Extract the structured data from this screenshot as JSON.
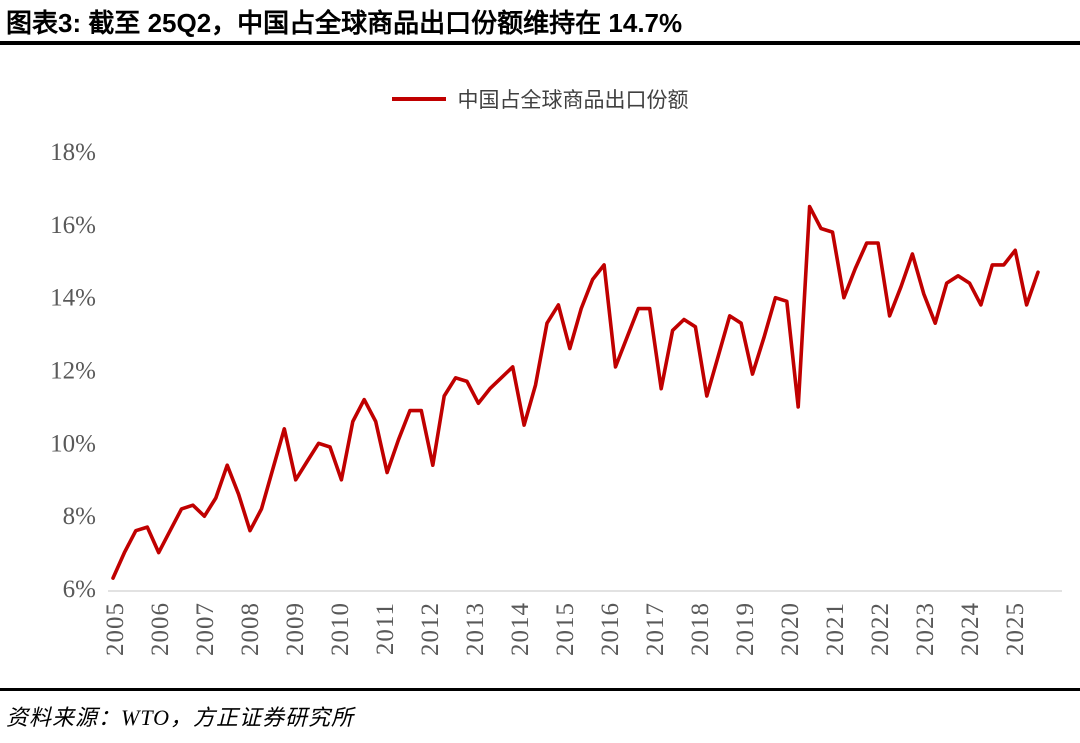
{
  "header": {
    "title": "图表3: 截至 25Q2，中国占全球商品出口份额维持在 14.7%"
  },
  "legend": {
    "label": "中国占全球商品出口份额"
  },
  "footer": {
    "source": "资料来源：WTO，方正证券研究所"
  },
  "colors": {
    "accent_red": "#C00000",
    "axis_line": "#D9D9D9",
    "tick_text": "#595959",
    "title_text": "#000000"
  },
  "chart_data": {
    "type": "line",
    "title": "中国占全球商品出口份额",
    "frequency": "quarterly",
    "x_start": "2005Q1",
    "x_end": "2025Q2",
    "latest_value_note": "25Q2 = 14.7%",
    "grid": false,
    "legend_position": "top-center",
    "ylim": [
      6,
      18
    ],
    "y_unit": "%",
    "y_ticks": [
      "6%",
      "8%",
      "10%",
      "12%",
      "14%",
      "16%",
      "18%"
    ],
    "x_tick_labels": [
      "2005",
      "2006",
      "2007",
      "2008",
      "2009",
      "2010",
      "2011",
      "2012",
      "2013",
      "2014",
      "2015",
      "2016",
      "2017",
      "2018",
      "2019",
      "2020",
      "2021",
      "2022",
      "2023",
      "2024",
      "2025"
    ],
    "series": [
      {
        "name": "中国占全球商品出口份额",
        "color": "#C00000",
        "values": [
          6.3,
          7.0,
          7.6,
          7.7,
          7.0,
          7.6,
          8.2,
          8.3,
          8.0,
          8.5,
          9.4,
          8.6,
          7.6,
          8.2,
          9.3,
          10.4,
          9.0,
          9.5,
          10.0,
          9.9,
          9.0,
          10.6,
          11.2,
          10.6,
          9.2,
          10.1,
          10.9,
          10.9,
          9.4,
          11.3,
          11.8,
          11.7,
          11.1,
          11.5,
          11.8,
          12.1,
          10.5,
          11.6,
          13.3,
          13.8,
          12.6,
          13.7,
          14.5,
          14.9,
          12.1,
          12.9,
          13.7,
          13.7,
          11.5,
          13.1,
          13.4,
          13.2,
          11.3,
          12.4,
          13.5,
          13.3,
          11.9,
          12.9,
          14.0,
          13.9,
          11.0,
          16.5,
          15.9,
          15.8,
          14.0,
          14.8,
          15.5,
          15.5,
          13.5,
          14.3,
          15.2,
          14.1,
          13.3,
          14.4,
          14.6,
          14.4,
          13.8,
          14.9,
          14.9,
          15.3,
          13.8,
          14.7
        ]
      }
    ]
  }
}
